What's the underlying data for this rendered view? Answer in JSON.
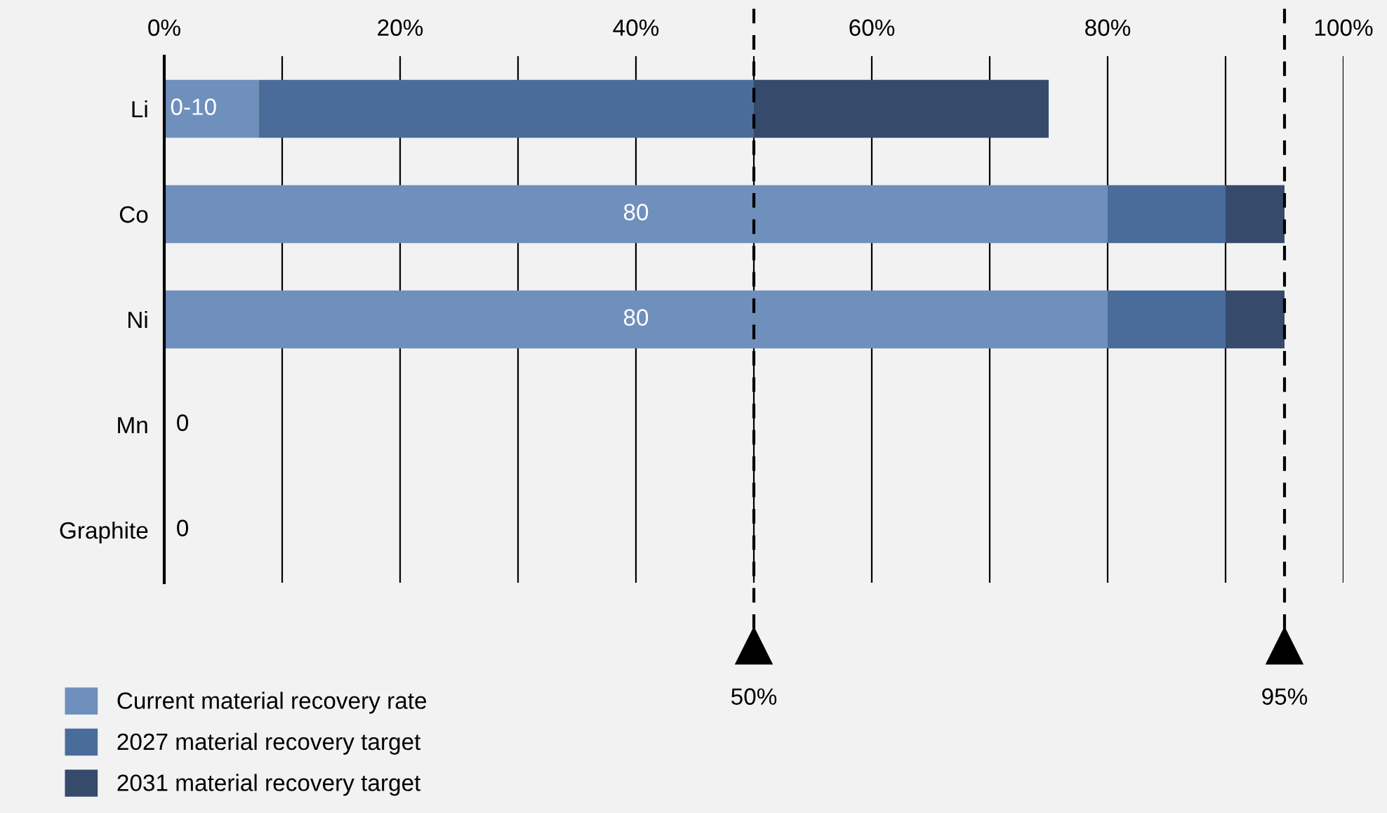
{
  "chart_data": {
    "type": "bar",
    "orientation": "horizontal",
    "stacked": true,
    "categories": [
      "Li",
      "Co",
      "Ni",
      "Mn",
      "Graphite"
    ],
    "series": [
      {
        "name": "Current material recovery rate",
        "color": "#6f8fbc",
        "values": [
          8,
          80,
          80,
          0,
          0
        ],
        "value_labels": [
          "0-10",
          "80",
          "80",
          "0",
          "0"
        ]
      },
      {
        "name": "2027 material recovery target",
        "color": "#4a6c9b",
        "values": [
          42,
          10,
          10,
          0,
          0
        ]
      },
      {
        "name": "2031 material recovery target",
        "color": "#364a6b",
        "values": [
          25,
          5,
          5,
          0,
          0
        ]
      }
    ],
    "xlim": [
      0,
      100
    ],
    "xticks": [
      {
        "value": 0,
        "label": "0%"
      },
      {
        "value": 10,
        "label": null
      },
      {
        "value": 20,
        "label": "20%"
      },
      {
        "value": 30,
        "label": null
      },
      {
        "value": 40,
        "label": "40%"
      },
      {
        "value": 50,
        "label": null
      },
      {
        "value": 60,
        "label": "60%"
      },
      {
        "value": 70,
        "label": null
      },
      {
        "value": 80,
        "label": "80%"
      },
      {
        "value": 90,
        "label": null
      },
      {
        "value": 100,
        "label": "100%"
      }
    ],
    "grid": "x",
    "ref_lines": [
      {
        "axis": "x",
        "value": 50,
        "label": "50%",
        "color": "#000000",
        "line_style": "dashed"
      },
      {
        "axis": "x",
        "value": 95,
        "label": "95%",
        "color": "#000000",
        "line_style": "dashed"
      }
    ],
    "legend": "bottom left"
  }
}
